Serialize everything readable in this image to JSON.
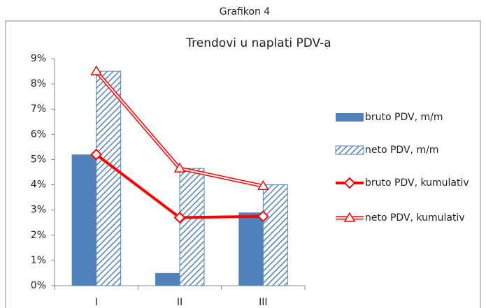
{
  "header": "Grafikon 4",
  "chart_data": {
    "type": "bar",
    "title": "Trendovi u naplati PDV-a",
    "categories": [
      "I",
      "II",
      "III"
    ],
    "series": [
      {
        "name": "bruto PDV, m/m",
        "type": "bar",
        "fill": "solid",
        "color": "#4f81bd",
        "values": [
          5.2,
          0.5,
          2.9
        ]
      },
      {
        "name": "neto PDV, m/m",
        "type": "bar",
        "fill": "hatch",
        "color": "#4f81bd",
        "values": [
          8.5,
          4.65,
          4.0
        ]
      },
      {
        "name": "bruto PDV, kumulativ",
        "type": "line",
        "marker": "diamond",
        "color": "#ff0000",
        "values": [
          5.2,
          2.7,
          2.75
        ]
      },
      {
        "name": "neto PDV, kumulativ",
        "type": "line",
        "marker": "triangle",
        "color": "#ff0000",
        "values": [
          8.5,
          4.65,
          3.95
        ]
      }
    ],
    "ylim": [
      0,
      9
    ],
    "yticks": [
      {
        "value": 0,
        "label": "0%"
      },
      {
        "value": 1,
        "label": "1%"
      },
      {
        "value": 2,
        "label": "2%"
      },
      {
        "value": 3,
        "label": "3%"
      },
      {
        "value": 4,
        "label": "4%"
      },
      {
        "value": 5,
        "label": "5%"
      },
      {
        "value": 6,
        "label": "6%"
      },
      {
        "value": 7,
        "label": "7%"
      },
      {
        "value": 8,
        "label": "8%"
      },
      {
        "value": 9,
        "label": "9%"
      }
    ],
    "grid": false,
    "legend": "right"
  }
}
